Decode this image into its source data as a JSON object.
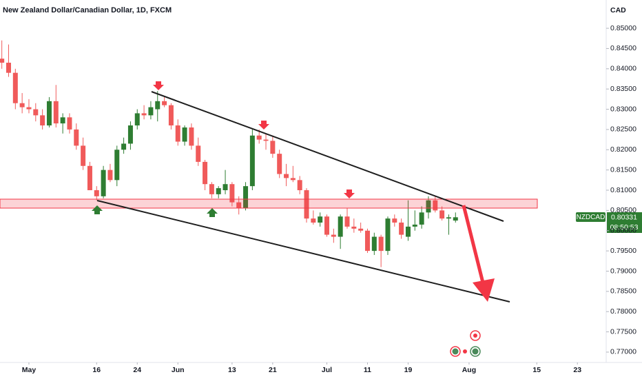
{
  "chart_data": {
    "type": "candlestick",
    "title": "New Zealand Dollar/Canadian Dollar, 1D, FXCM",
    "currency": "CAD",
    "up_color": "#2e7d32",
    "down_color": "#f05a5a",
    "grid": false,
    "open": [
      0.8425,
      0.8415,
      0.839,
      0.8315,
      0.8305,
      0.83,
      0.8285,
      0.826,
      0.832,
      0.8265,
      0.828,
      0.825,
      0.821,
      0.816,
      0.81,
      0.8085,
      0.815,
      0.8125,
      0.82,
      0.8215,
      0.826,
      0.829,
      0.8285,
      0.83,
      0.832,
      0.831,
      0.826,
      0.822,
      0.8255,
      0.821,
      0.817,
      0.8115,
      0.809,
      0.81,
      0.8115,
      0.807,
      0.8055,
      0.811,
      0.8235,
      0.8225,
      0.8222,
      0.819,
      0.814,
      0.813,
      0.8125,
      0.81,
      0.803,
      0.802,
      0.8035,
      0.799,
      0.7985,
      0.8035,
      0.801,
      0.8005,
      0.8,
      0.795,
      0.7985,
      0.795,
      0.803,
      0.802,
      0.7985,
      0.801,
      0.8015,
      0.8045,
      0.8075,
      0.805,
      0.803,
      0.8025
    ],
    "high": [
      0.847,
      0.846,
      0.84,
      0.834,
      0.8325,
      0.8315,
      0.83,
      0.833,
      0.836,
      0.829,
      0.829,
      0.8265,
      0.823,
      0.817,
      0.811,
      0.816,
      0.8165,
      0.821,
      0.823,
      0.827,
      0.83,
      0.831,
      0.832,
      0.8345,
      0.833,
      0.8315,
      0.8275,
      0.826,
      0.8265,
      0.823,
      0.8175,
      0.812,
      0.811,
      0.815,
      0.812,
      0.8085,
      0.812,
      0.825,
      0.825,
      0.824,
      0.8235,
      0.82,
      0.8165,
      0.816,
      0.8135,
      0.8105,
      0.805,
      0.8045,
      0.804,
      0.8005,
      0.804,
      0.8055,
      0.803,
      0.802,
      0.8005,
      0.7995,
      0.799,
      0.8035,
      0.804,
      0.803,
      0.8075,
      0.805,
      0.806,
      0.8085,
      0.8085,
      0.806,
      0.804,
      0.8045
    ],
    "low": [
      0.84,
      0.838,
      0.83,
      0.829,
      0.829,
      0.827,
      0.825,
      0.8255,
      0.8255,
      0.824,
      0.824,
      0.82,
      0.815,
      0.81,
      0.8075,
      0.808,
      0.812,
      0.811,
      0.819,
      0.82,
      0.825,
      0.8275,
      0.8275,
      0.827,
      0.8305,
      0.825,
      0.821,
      0.821,
      0.82,
      0.816,
      0.81,
      0.808,
      0.808,
      0.809,
      0.806,
      0.804,
      0.805,
      0.81,
      0.8215,
      0.82,
      0.818,
      0.813,
      0.811,
      0.812,
      0.809,
      0.802,
      0.8015,
      0.801,
      0.7985,
      0.797,
      0.7955,
      0.8005,
      0.7995,
      0.7995,
      0.7945,
      0.794,
      0.791,
      0.794,
      0.801,
      0.798,
      0.7975,
      0.8,
      0.8005,
      0.803,
      0.8045,
      0.8025,
      0.799,
      0.802
    ],
    "close": [
      0.8415,
      0.839,
      0.8315,
      0.8305,
      0.83,
      0.8285,
      0.826,
      0.832,
      0.8265,
      0.828,
      0.825,
      0.821,
      0.816,
      0.81,
      0.8085,
      0.815,
      0.8125,
      0.82,
      0.8215,
      0.826,
      0.829,
      0.8285,
      0.8305,
      0.832,
      0.831,
      0.826,
      0.822,
      0.8255,
      0.821,
      0.817,
      0.8115,
      0.809,
      0.8105,
      0.8115,
      0.807,
      0.8055,
      0.811,
      0.8235,
      0.8225,
      0.8222,
      0.819,
      0.814,
      0.813,
      0.8125,
      0.81,
      0.803,
      0.802,
      0.8035,
      0.799,
      0.7985,
      0.8035,
      0.801,
      0.8005,
      0.8,
      0.795,
      0.7985,
      0.795,
      0.803,
      0.802,
      0.799,
      0.801,
      0.8015,
      0.8045,
      0.8075,
      0.805,
      0.803,
      0.8033,
      0.80331
    ],
    "xlim": [
      -0.27,
      89.25
    ],
    "xticks": [
      {
        "value": 4,
        "label": "May"
      },
      {
        "value": 14,
        "label": "16"
      },
      {
        "value": 20,
        "label": "24"
      },
      {
        "value": 26,
        "label": "Jun"
      },
      {
        "value": 34,
        "label": "13"
      },
      {
        "value": 40,
        "label": "21"
      },
      {
        "value": 48,
        "label": "Jul"
      },
      {
        "value": 54,
        "label": "11"
      },
      {
        "value": 60,
        "label": "19"
      },
      {
        "value": 69,
        "label": "Aug"
      },
      {
        "value": 79,
        "label": "15"
      },
      {
        "value": 85,
        "label": "23"
      }
    ],
    "ylim": [
      0.76744,
      0.85699
    ],
    "yticks": [
      {
        "value": 0.77,
        "label": "0.77000"
      },
      {
        "value": 0.775,
        "label": "0.77500"
      },
      {
        "value": 0.78,
        "label": "0.78000"
      },
      {
        "value": 0.785,
        "label": "0.78500"
      },
      {
        "value": 0.79,
        "label": "0.79000"
      },
      {
        "value": 0.795,
        "label": "0.79500"
      },
      {
        "value": 0.8,
        "label": "0.80000"
      },
      {
        "value": 0.805,
        "label": "0.80500"
      },
      {
        "value": 0.81,
        "label": "0.81000"
      },
      {
        "value": 0.815,
        "label": "0.81500"
      },
      {
        "value": 0.82,
        "label": "0.82000"
      },
      {
        "value": 0.825,
        "label": "0.82500"
      },
      {
        "value": 0.83,
        "label": "0.83000"
      },
      {
        "value": 0.835,
        "label": "0.83500"
      },
      {
        "value": 0.84,
        "label": "0.84000"
      },
      {
        "value": 0.845,
        "label": "0.84500"
      },
      {
        "value": 0.85,
        "label": "0.85000"
      }
    ],
    "price_tag": {
      "symbol": "NZDCAD",
      "price": "0.80331",
      "countdown": "08:50:53"
    }
  }
}
